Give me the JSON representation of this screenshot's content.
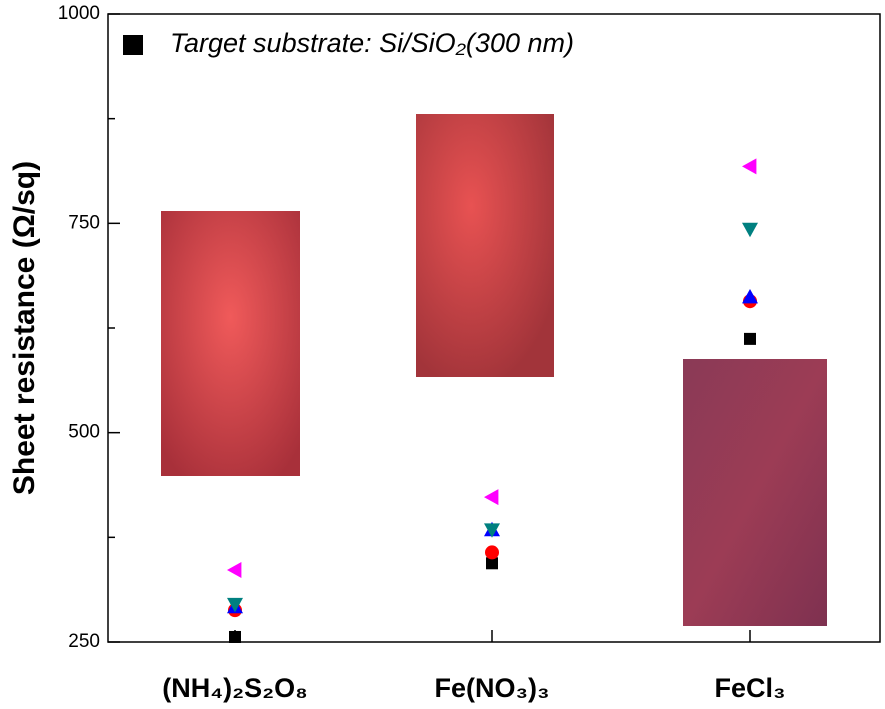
{
  "chart_data": {
    "type": "scatter",
    "y_label": "Sheet resistance (Ω/sq)",
    "categories": [
      "(NH₄)₂S₂O₈",
      "Fe(NO₃)₃",
      "FeCl₃"
    ],
    "series": [
      {
        "name": "Target substrate: Si/SiO₂(300 nm)",
        "color": "#000000",
        "marker": "square",
        "values": [
          256,
          344,
          612
        ]
      },
      {
        "color": "#ff0000",
        "marker": "circle",
        "values": [
          288,
          357,
          657
        ]
      },
      {
        "color": "#0000ff",
        "marker": "triangle-up",
        "values": [
          292,
          384,
          662
        ]
      },
      {
        "color": "#008080",
        "marker": "triangle-down",
        "values": [
          295,
          384,
          743
        ]
      },
      {
        "color": "#ff00ff",
        "marker": "triangle-left",
        "values": [
          336,
          423,
          818
        ]
      }
    ],
    "ylim": [
      250,
      1000
    ],
    "yticks": [
      250,
      500,
      750,
      1000
    ],
    "yminor_ticks": [
      375,
      625,
      875
    ],
    "legend": "top-left"
  }
}
